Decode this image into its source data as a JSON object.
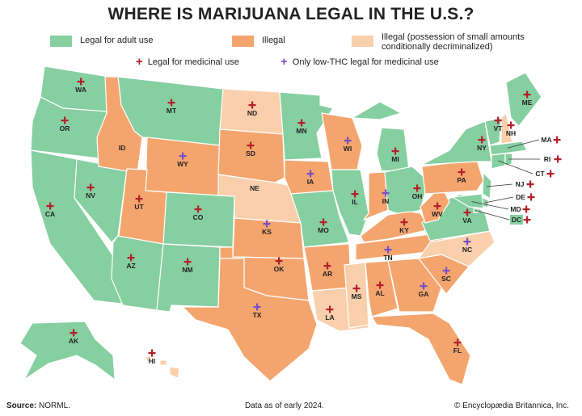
{
  "title": "WHERE IS MARIJUANA LEGAL IN THE U.S.?",
  "legend": {
    "legal_adult": "Legal for adult use",
    "illegal": "Illegal",
    "decriminalized": "Illegal (possession of small amounts conditionally decriminalized)",
    "medicinal": "Legal for medicinal use",
    "low_thc": "Only low-THC legal for medicinal use"
  },
  "colors": {
    "legal": "#86cfa0",
    "illegal": "#f4a56e",
    "decriminalized": "#f9cfac",
    "medicinal": "#b3202c",
    "low_thc": "#7a4fc4",
    "border": "#ffffff"
  },
  "states": [
    {
      "code": "WA",
      "status": "legal",
      "marker": "medicinal"
    },
    {
      "code": "OR",
      "status": "legal",
      "marker": "medicinal"
    },
    {
      "code": "CA",
      "status": "legal",
      "marker": "medicinal"
    },
    {
      "code": "NV",
      "status": "legal",
      "marker": "medicinal"
    },
    {
      "code": "ID",
      "status": "illegal",
      "marker": ""
    },
    {
      "code": "MT",
      "status": "legal",
      "marker": "medicinal"
    },
    {
      "code": "WY",
      "status": "illegal",
      "marker": "low_thc"
    },
    {
      "code": "UT",
      "status": "illegal",
      "marker": "medicinal"
    },
    {
      "code": "CO",
      "status": "legal",
      "marker": "medicinal"
    },
    {
      "code": "AZ",
      "status": "legal",
      "marker": "medicinal"
    },
    {
      "code": "NM",
      "status": "legal",
      "marker": "medicinal"
    },
    {
      "code": "ND",
      "status": "decriminalized",
      "marker": "medicinal"
    },
    {
      "code": "SD",
      "status": "illegal",
      "marker": "medicinal"
    },
    {
      "code": "NE",
      "status": "decriminalized",
      "marker": ""
    },
    {
      "code": "KS",
      "status": "illegal",
      "marker": "low_thc"
    },
    {
      "code": "OK",
      "status": "illegal",
      "marker": "medicinal"
    },
    {
      "code": "TX",
      "status": "illegal",
      "marker": "low_thc"
    },
    {
      "code": "MN",
      "status": "legal",
      "marker": "medicinal"
    },
    {
      "code": "IA",
      "status": "illegal",
      "marker": "low_thc"
    },
    {
      "code": "MO",
      "status": "legal",
      "marker": "medicinal"
    },
    {
      "code": "AR",
      "status": "illegal",
      "marker": "medicinal"
    },
    {
      "code": "LA",
      "status": "decriminalized",
      "marker": "medicinal"
    },
    {
      "code": "WI",
      "status": "illegal",
      "marker": "low_thc"
    },
    {
      "code": "IL",
      "status": "legal",
      "marker": "medicinal"
    },
    {
      "code": "MI",
      "status": "legal",
      "marker": "medicinal"
    },
    {
      "code": "IN",
      "status": "illegal",
      "marker": "low_thc"
    },
    {
      "code": "OH",
      "status": "legal",
      "marker": "medicinal"
    },
    {
      "code": "KY",
      "status": "illegal",
      "marker": "medicinal"
    },
    {
      "code": "TN",
      "status": "illegal",
      "marker": "low_thc"
    },
    {
      "code": "MS",
      "status": "decriminalized",
      "marker": "medicinal"
    },
    {
      "code": "AL",
      "status": "illegal",
      "marker": "medicinal"
    },
    {
      "code": "GA",
      "status": "illegal",
      "marker": "low_thc"
    },
    {
      "code": "FL",
      "status": "illegal",
      "marker": "medicinal"
    },
    {
      "code": "SC",
      "status": "illegal",
      "marker": "low_thc"
    },
    {
      "code": "NC",
      "status": "decriminalized",
      "marker": "low_thc"
    },
    {
      "code": "VA",
      "status": "legal",
      "marker": "medicinal"
    },
    {
      "code": "WV",
      "status": "illegal",
      "marker": "medicinal"
    },
    {
      "code": "PA",
      "status": "illegal",
      "marker": "medicinal"
    },
    {
      "code": "NY",
      "status": "legal",
      "marker": "medicinal"
    },
    {
      "code": "NJ",
      "status": "legal",
      "marker": "medicinal"
    },
    {
      "code": "DE",
      "status": "legal",
      "marker": "medicinal"
    },
    {
      "code": "MD",
      "status": "legal",
      "marker": "medicinal"
    },
    {
      "code": "DC",
      "status": "legal",
      "marker": "medicinal"
    },
    {
      "code": "VT",
      "status": "legal",
      "marker": "medicinal"
    },
    {
      "code": "NH",
      "status": "decriminalized",
      "marker": "medicinal"
    },
    {
      "code": "ME",
      "status": "legal",
      "marker": "medicinal"
    },
    {
      "code": "MA",
      "status": "legal",
      "marker": "medicinal"
    },
    {
      "code": "CT",
      "status": "legal",
      "marker": "medicinal"
    },
    {
      "code": "RI",
      "status": "legal",
      "marker": "medicinal"
    },
    {
      "code": "AK",
      "status": "legal",
      "marker": "medicinal"
    },
    {
      "code": "HI",
      "status": "decriminalized",
      "marker": "medicinal"
    }
  ],
  "footer": {
    "source_label": "Source:",
    "source": "NORML.",
    "data_note": "Data as of early 2024.",
    "copyright": "© Encyclopædia Britannica, Inc."
  }
}
